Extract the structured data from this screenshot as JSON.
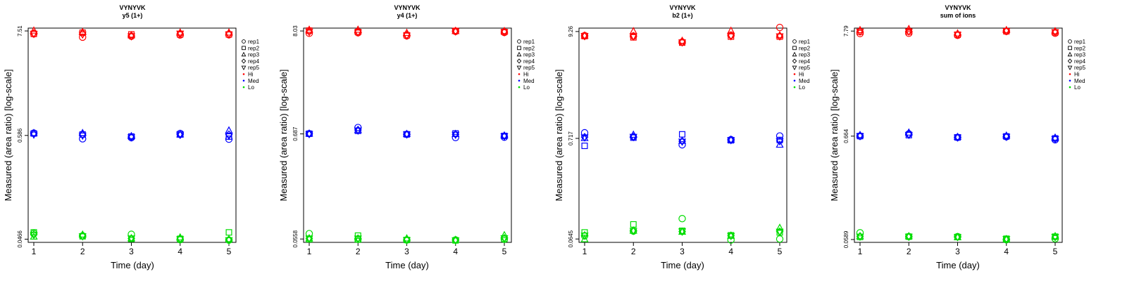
{
  "colors": {
    "Hi": "#ff0000",
    "Med": "#0000ff",
    "Lo": "#00dd00"
  },
  "legend": [
    {
      "label": "rep1",
      "marker": "circle"
    },
    {
      "label": "rep2",
      "marker": "square"
    },
    {
      "label": "rep3",
      "marker": "triangle-up"
    },
    {
      "label": "rep4",
      "marker": "diamond"
    },
    {
      "label": "rep5",
      "marker": "triangle-down"
    },
    {
      "label": "Hi",
      "marker": "dot",
      "color": "Hi"
    },
    {
      "label": "Med",
      "marker": "dot",
      "color": "Med"
    },
    {
      "label": "Lo",
      "marker": "dot",
      "color": "Lo"
    }
  ],
  "chart_data": [
    {
      "type": "scatter",
      "title": "VYNYVK",
      "subtitle": "y5 (1+)",
      "xlabel": "Time (day)",
      "ylabel": "Measured (area ratio) [log-scale]",
      "x": [
        1,
        2,
        3,
        4,
        5
      ],
      "yscale": "log",
      "ylim": [
        0.0431,
        8.05
      ],
      "yticks": [
        {
          "v": 7.51,
          "label": "7.51"
        },
        {
          "v": 0.586,
          "label": "0.586"
        },
        {
          "v": 0.0466,
          "label": "0.0466"
        }
      ],
      "series": [
        {
          "level": "Hi",
          "rep": "rep1",
          "values": [
            7.0,
            6.45,
            6.6,
            6.8,
            6.85
          ]
        },
        {
          "level": "Hi",
          "rep": "rep2",
          "values": [
            7.0,
            7.2,
            6.9,
            6.9,
            6.9
          ]
        },
        {
          "level": "Hi",
          "rep": "rep3",
          "values": [
            7.55,
            7.3,
            6.75,
            7.2,
            7.2
          ]
        },
        {
          "level": "Hi",
          "rep": "rep4",
          "values": [
            7.1,
            7.0,
            6.65,
            7.0,
            7.0
          ]
        },
        {
          "level": "Hi",
          "rep": "rep5",
          "values": [
            7.0,
            6.9,
            6.6,
            7.05,
            6.9
          ]
        },
        {
          "level": "Med",
          "rep": "rep1",
          "values": [
            0.62,
            0.54,
            0.555,
            0.615,
            0.535
          ]
        },
        {
          "level": "Med",
          "rep": "rep2",
          "values": [
            0.615,
            0.6,
            0.57,
            0.6,
            0.57
          ]
        },
        {
          "level": "Med",
          "rep": "rep3",
          "values": [
            0.62,
            0.62,
            0.575,
            0.6,
            0.66
          ]
        },
        {
          "level": "Med",
          "rep": "rep4",
          "values": [
            0.61,
            0.595,
            0.565,
            0.595,
            0.6
          ]
        },
        {
          "level": "Med",
          "rep": "rep5",
          "values": [
            0.6,
            0.585,
            0.56,
            0.6,
            0.58
          ]
        },
        {
          "level": "Lo",
          "rep": "rep1",
          "values": [
            0.0535,
            0.0505,
            0.0525,
            0.046,
            0.0455
          ]
        },
        {
          "level": "Lo",
          "rep": "rep2",
          "values": [
            0.055,
            0.05,
            0.047,
            0.047,
            0.055
          ]
        },
        {
          "level": "Lo",
          "rep": "rep3",
          "values": [
            0.0495,
            0.052,
            0.0475,
            0.0485,
            0.0465
          ]
        },
        {
          "level": "Lo",
          "rep": "rep4",
          "values": [
            0.052,
            0.0505,
            0.0475,
            0.047,
            0.0455
          ]
        },
        {
          "level": "Lo",
          "rep": "rep5",
          "values": [
            0.052,
            0.05,
            0.0475,
            0.0465,
            0.0455
          ]
        }
      ]
    },
    {
      "type": "scatter",
      "title": "VYNYVK",
      "subtitle": "y4 (1+)",
      "xlabel": "Time (day)",
      "ylabel": "Measured (area ratio) [log-scale]",
      "x": [
        1,
        2,
        3,
        4,
        5
      ],
      "yscale": "log",
      "ylim": [
        0.0515,
        8.6
      ],
      "yticks": [
        {
          "v": 8.03,
          "label": "8.03"
        },
        {
          "v": 0.687,
          "label": "0.687"
        },
        {
          "v": 0.0558,
          "label": "0.0558"
        }
      ],
      "series": [
        {
          "level": "Hi",
          "rep": "rep1",
          "values": [
            7.6,
            7.7,
            7.15,
            7.95,
            7.75
          ]
        },
        {
          "level": "Hi",
          "rep": "rep2",
          "values": [
            8.1,
            7.85,
            7.25,
            8.05,
            7.85
          ]
        },
        {
          "level": "Hi",
          "rep": "rep3",
          "values": [
            8.25,
            8.25,
            7.65,
            8.0,
            8.0
          ]
        },
        {
          "level": "Hi",
          "rep": "rep4",
          "values": [
            7.9,
            7.85,
            7.3,
            8.05,
            7.9
          ]
        },
        {
          "level": "Hi",
          "rep": "rep5",
          "values": [
            7.85,
            7.75,
            7.2,
            7.95,
            7.8
          ]
        },
        {
          "level": "Med",
          "rep": "rep1",
          "values": [
            0.69,
            0.8,
            0.68,
            0.63,
            0.635
          ]
        },
        {
          "level": "Med",
          "rep": "rep2",
          "values": [
            0.69,
            0.74,
            0.68,
            0.695,
            0.655
          ]
        },
        {
          "level": "Med",
          "rep": "rep3",
          "values": [
            0.69,
            0.75,
            0.685,
            0.685,
            0.66
          ]
        },
        {
          "level": "Med",
          "rep": "rep4",
          "values": [
            0.69,
            0.755,
            0.68,
            0.68,
            0.655
          ]
        },
        {
          "level": "Med",
          "rep": "rep5",
          "values": [
            0.685,
            0.745,
            0.68,
            0.675,
            0.65
          ]
        },
        {
          "level": "Lo",
          "rep": "rep1",
          "values": [
            0.0635,
            0.0555,
            0.0545,
            0.0545,
            0.0555
          ]
        },
        {
          "level": "Lo",
          "rep": "rep2",
          "values": [
            0.0555,
            0.0605,
            0.0545,
            0.054,
            0.056
          ]
        },
        {
          "level": "Lo",
          "rep": "rep3",
          "values": [
            0.0565,
            0.055,
            0.0565,
            0.0545,
            0.061
          ]
        },
        {
          "level": "Lo",
          "rep": "rep4",
          "values": [
            0.0565,
            0.0565,
            0.0545,
            0.0545,
            0.057
          ]
        },
        {
          "level": "Lo",
          "rep": "rep5",
          "values": [
            0.0565,
            0.0565,
            0.0545,
            0.054,
            0.057
          ]
        }
      ]
    },
    {
      "type": "scatter",
      "title": "VYNYVK",
      "subtitle": "b2 (1+)",
      "xlabel": "Time (day)",
      "ylabel": "Measured (area ratio) [log-scale]",
      "x": [
        1,
        2,
        3,
        4,
        5
      ],
      "yscale": "log",
      "ylim": [
        0.0595,
        10.05
      ],
      "yticks": [
        {
          "v": 9.26,
          "label": "9.26"
        },
        {
          "v": 0.717,
          "label": "0.717"
        },
        {
          "v": 0.0645,
          "label": "0.0645"
        }
      ],
      "series": [
        {
          "level": "Hi",
          "rep": "rep1",
          "values": [
            8.4,
            8.3,
            7.2,
            8.5,
            10.2
          ]
        },
        {
          "level": "Hi",
          "rep": "rep2",
          "values": [
            8.3,
            8.05,
            7.1,
            8.2,
            8.2
          ]
        },
        {
          "level": "Hi",
          "rep": "rep3",
          "values": [
            8.4,
            9.3,
            7.4,
            9.4,
            8.45
          ]
        },
        {
          "level": "Hi",
          "rep": "rep4",
          "values": [
            8.3,
            8.3,
            7.2,
            8.35,
            8.3
          ]
        },
        {
          "level": "Hi",
          "rep": "rep5",
          "values": [
            8.35,
            8.25,
            7.15,
            8.3,
            8.25
          ]
        },
        {
          "level": "Med",
          "rep": "rep1",
          "values": [
            0.82,
            0.745,
            0.615,
            0.695,
            0.76
          ]
        },
        {
          "level": "Med",
          "rep": "rep2",
          "values": [
            0.6,
            0.73,
            0.79,
            0.685,
            0.69
          ]
        },
        {
          "level": "Med",
          "rep": "rep3",
          "values": [
            0.72,
            0.78,
            0.675,
            0.695,
            0.615
          ]
        },
        {
          "level": "Med",
          "rep": "rep4",
          "values": [
            0.74,
            0.74,
            0.67,
            0.69,
            0.675
          ]
        },
        {
          "level": "Med",
          "rep": "rep5",
          "values": [
            0.735,
            0.745,
            0.665,
            0.69,
            0.67
          ]
        },
        {
          "level": "Lo",
          "rep": "rep1",
          "values": [
            0.0695,
            0.078,
            0.105,
            0.063,
            0.0645
          ]
        },
        {
          "level": "Lo",
          "rep": "rep2",
          "values": [
            0.0755,
            0.0915,
            0.0785,
            0.0705,
            0.0755
          ]
        },
        {
          "level": "Lo",
          "rep": "rep3",
          "values": [
            0.064,
            0.0785,
            0.0765,
            0.0695,
            0.084
          ]
        },
        {
          "level": "Lo",
          "rep": "rep4",
          "values": [
            0.0705,
            0.079,
            0.077,
            0.07,
            0.077
          ]
        },
        {
          "level": "Lo",
          "rep": "rep5",
          "values": [
            0.07,
            0.0785,
            0.0775,
            0.0695,
            0.077
          ]
        }
      ]
    },
    {
      "type": "scatter",
      "title": "VYNYVK",
      "subtitle": "sum of ions",
      "xlabel": "Time (day)",
      "ylabel": "Measured (area ratio) [log-scale]",
      "x": [
        1,
        2,
        3,
        4,
        5
      ],
      "yscale": "log",
      "ylim": [
        0.0551,
        8.35
      ],
      "yticks": [
        {
          "v": 7.79,
          "label": "7.79"
        },
        {
          "v": 0.664,
          "label": "0.664"
        },
        {
          "v": 0.0589,
          "label": "0.0589"
        }
      ],
      "series": [
        {
          "level": "Hi",
          "rep": "rep1",
          "values": [
            7.35,
            7.4,
            7.05,
            7.75,
            7.4
          ]
        },
        {
          "level": "Hi",
          "rep": "rep2",
          "values": [
            7.65,
            7.7,
            7.15,
            7.75,
            7.55
          ]
        },
        {
          "level": "Hi",
          "rep": "rep3",
          "values": [
            7.95,
            8.15,
            7.35,
            7.95,
            7.75
          ]
        },
        {
          "level": "Hi",
          "rep": "rep4",
          "values": [
            7.75,
            7.75,
            7.2,
            7.8,
            7.6
          ]
        },
        {
          "level": "Hi",
          "rep": "rep5",
          "values": [
            7.7,
            7.7,
            7.15,
            7.8,
            7.6
          ]
        },
        {
          "level": "Med",
          "rep": "rep1",
          "values": [
            0.665,
            0.7,
            0.645,
            0.655,
            0.61
          ]
        },
        {
          "level": "Med",
          "rep": "rep2",
          "values": [
            0.665,
            0.68,
            0.645,
            0.66,
            0.63
          ]
        },
        {
          "level": "Med",
          "rep": "rep3",
          "values": [
            0.68,
            0.72,
            0.65,
            0.67,
            0.64
          ]
        },
        {
          "level": "Med",
          "rep": "rep4",
          "values": [
            0.67,
            0.69,
            0.645,
            0.66,
            0.625
          ]
        },
        {
          "level": "Med",
          "rep": "rep5",
          "values": [
            0.665,
            0.685,
            0.645,
            0.655,
            0.62
          ]
        },
        {
          "level": "Lo",
          "rep": "rep1",
          "values": [
            0.069,
            0.063,
            0.063,
            0.0585,
            0.06
          ]
        },
        {
          "level": "Lo",
          "rep": "rep2",
          "values": [
            0.0625,
            0.063,
            0.0625,
            0.06,
            0.063
          ]
        },
        {
          "level": "Lo",
          "rep": "rep3",
          "values": [
            0.0635,
            0.0635,
            0.062,
            0.059,
            0.0635
          ]
        },
        {
          "level": "Lo",
          "rep": "rep4",
          "values": [
            0.0635,
            0.063,
            0.0625,
            0.0595,
            0.0625
          ]
        },
        {
          "level": "Lo",
          "rep": "rep5",
          "values": [
            0.063,
            0.063,
            0.0625,
            0.0595,
            0.0625
          ]
        }
      ]
    }
  ]
}
